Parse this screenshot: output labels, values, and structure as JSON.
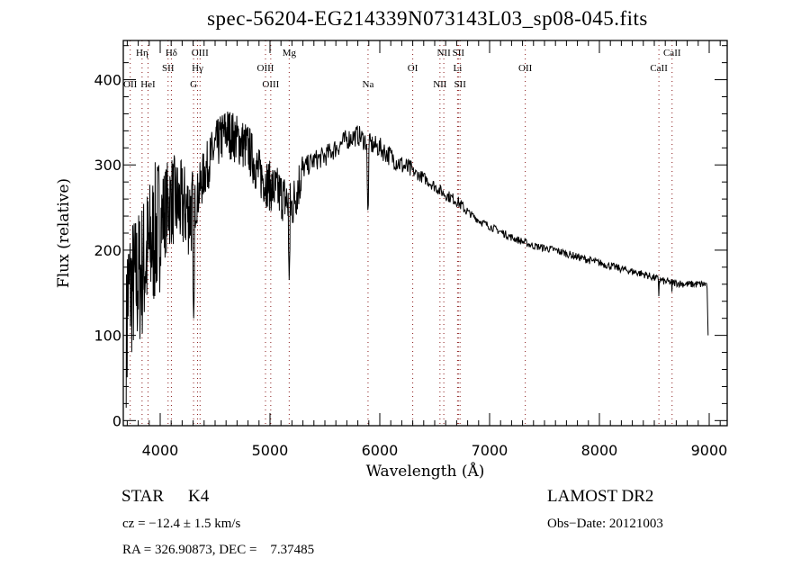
{
  "chart_data": {
    "type": "line",
    "title": "spec-56204-EG214339N073143L03_sp08-045.fits",
    "xlabel": "Wavelength (Å)",
    "ylabel": "Flux (relative)",
    "xlim": [
      3664,
      9164
    ],
    "ylim": [
      -6,
      446
    ],
    "xticks": [
      {
        "value": 4000,
        "label": "4000"
      },
      {
        "value": 5000,
        "label": "5000"
      },
      {
        "value": 6000,
        "label": "6000"
      },
      {
        "value": 7000,
        "label": "7000"
      },
      {
        "value": 8000,
        "label": "8000"
      },
      {
        "value": 9000,
        "label": "9000"
      }
    ],
    "yticks": [
      {
        "value": 0,
        "label": "0"
      },
      {
        "value": 100,
        "label": "100"
      },
      {
        "value": 200,
        "label": "200"
      },
      {
        "value": 300,
        "label": "300"
      },
      {
        "value": 400,
        "label": "400"
      }
    ],
    "grid": false,
    "series": [
      {
        "name": "spectrum",
        "x": [
          3700,
          3800,
          3900,
          4000,
          4100,
          4200,
          4300,
          4400,
          4500,
          4600,
          4700,
          4800,
          4900,
          5000,
          5100,
          5200,
          5300,
          5400,
          5500,
          5600,
          5700,
          5800,
          5900,
          6000,
          6100,
          6200,
          6300,
          6400,
          6500,
          6600,
          6700,
          6800,
          6900,
          7000,
          7200,
          7400,
          7600,
          7800,
          8000,
          8200,
          8400,
          8600,
          8800,
          8980,
          9000
        ],
        "y": [
          150,
          165,
          200,
          235,
          260,
          250,
          245,
          290,
          320,
          340,
          330,
          320,
          290,
          275,
          265,
          250,
          295,
          305,
          310,
          320,
          330,
          335,
          325,
          320,
          310,
          300,
          292,
          285,
          275,
          265,
          258,
          245,
          235,
          228,
          215,
          205,
          200,
          192,
          185,
          178,
          172,
          163,
          160,
          160,
          100
        ]
      }
    ],
    "absorption_features": [
      {
        "wavelength": 4305,
        "flux": 120
      },
      {
        "wavelength": 5175,
        "flux": 165
      },
      {
        "wavelength": 5893,
        "flux": 235
      },
      {
        "wavelength": 8542,
        "flux": 140
      },
      {
        "wavelength": 8662,
        "flux": 145
      }
    ],
    "line_markers": [
      {
        "label": "OII",
        "wavelength": 3727,
        "row": 3
      },
      {
        "label": "Hη",
        "wavelength": 3835,
        "row": 1
      },
      {
        "label": "HeI",
        "wavelength": 3889,
        "row": 3
      },
      {
        "label": "SII",
        "wavelength": 4072,
        "row": 2
      },
      {
        "label": "Hδ",
        "wavelength": 4102,
        "row": 1
      },
      {
        "label": "G",
        "wavelength": 4304,
        "row": 3
      },
      {
        "label": "Hγ",
        "wavelength": 4340,
        "row": 2
      },
      {
        "label": "OIII",
        "wavelength": 4363,
        "row": 1
      },
      {
        "label": "OIII",
        "wavelength": 4959,
        "row": 2
      },
      {
        "label": "OIII",
        "wavelength": 5007,
        "row": 3
      },
      {
        "label": "Mg",
        "wavelength": 5175,
        "row": 1
      },
      {
        "label": "Na",
        "wavelength": 5893,
        "row": 3
      },
      {
        "label": "OI",
        "wavelength": 6300,
        "row": 2
      },
      {
        "label": "NII",
        "wavelength": 6548,
        "row": 3
      },
      {
        "label": "NII",
        "wavelength": 6583,
        "row": 1
      },
      {
        "label": "Li",
        "wavelength": 6708,
        "row": 2
      },
      {
        "label": "SII",
        "wavelength": 6716,
        "row": 1
      },
      {
        "label": "SII",
        "wavelength": 6731,
        "row": 3
      },
      {
        "label": "OII",
        "wavelength": 7325,
        "row": 2
      },
      {
        "label": "CaII",
        "wavelength": 8542,
        "row": 2
      },
      {
        "label": "CaII",
        "wavelength": 8662,
        "row": 1
      }
    ]
  },
  "info": {
    "object_class": "STAR",
    "subclass": "K4",
    "survey": "LAMOST DR2",
    "redshift": "cz = −12.4 ± 1.5 km/s",
    "obs_date": "Obs−Date: 20121003",
    "coords": "RA = 326.90873, DEC =    7.37485"
  },
  "colors": {
    "line_marker": "#8b1a1a",
    "spectrum": "#000000"
  }
}
